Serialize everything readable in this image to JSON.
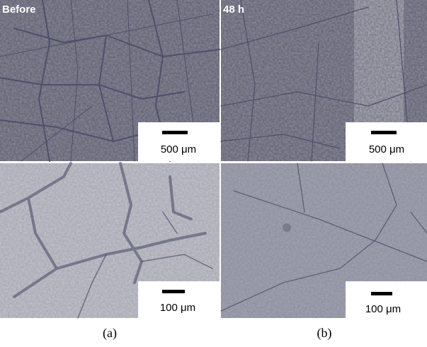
{
  "panels": [
    {
      "label": "Before",
      "scale_bar": "500 μm"
    },
    {
      "label": "48 h",
      "scale_bar": "500 μm"
    },
    {
      "scale_bar": "100 μm"
    },
    {
      "scale_bar": "100 μm"
    }
  ],
  "captions": [
    "(a)",
    "(b)"
  ]
}
